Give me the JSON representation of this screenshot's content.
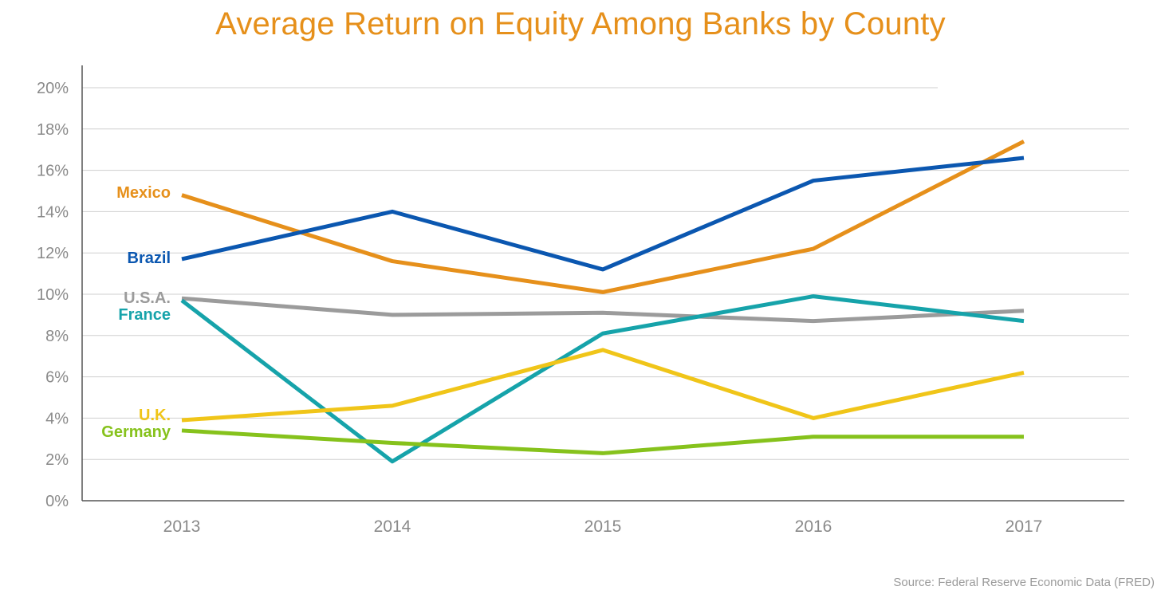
{
  "chart_data": {
    "type": "line",
    "title": "Average Return on Equity Among Banks by County",
    "xlabel": "",
    "ylabel": "",
    "x": [
      "2013",
      "2014",
      "2015",
      "2016",
      "2017"
    ],
    "ylim": [
      0,
      20
    ],
    "yticks": [
      "0%",
      "2%",
      "4%",
      "6%",
      "8%",
      "10%",
      "12%",
      "14%",
      "16%",
      "18%",
      "20%"
    ],
    "grid": true,
    "series": [
      {
        "name": "Mexico",
        "color": "#E6901B",
        "values": [
          14.8,
          11.6,
          10.1,
          12.2,
          17.4
        ]
      },
      {
        "name": "Brazil",
        "color": "#0B57B0",
        "values": [
          11.7,
          14.0,
          11.2,
          15.5,
          16.6
        ]
      },
      {
        "name": "U.S.A.",
        "color": "#9B9B9B",
        "values": [
          9.8,
          9.0,
          9.1,
          8.7,
          9.2
        ]
      },
      {
        "name": "France",
        "color": "#16A3AA",
        "values": [
          9.7,
          1.9,
          8.1,
          9.9,
          8.7
        ]
      },
      {
        "name": "U.K.",
        "color": "#F0C519",
        "values": [
          3.9,
          4.6,
          7.3,
          4.0,
          6.2
        ]
      },
      {
        "name": "Germany",
        "color": "#86C21C",
        "values": [
          3.4,
          2.8,
          2.3,
          3.1,
          3.1
        ]
      }
    ]
  },
  "source_text": "Source: Federal Reserve Economic Data (FRED)"
}
